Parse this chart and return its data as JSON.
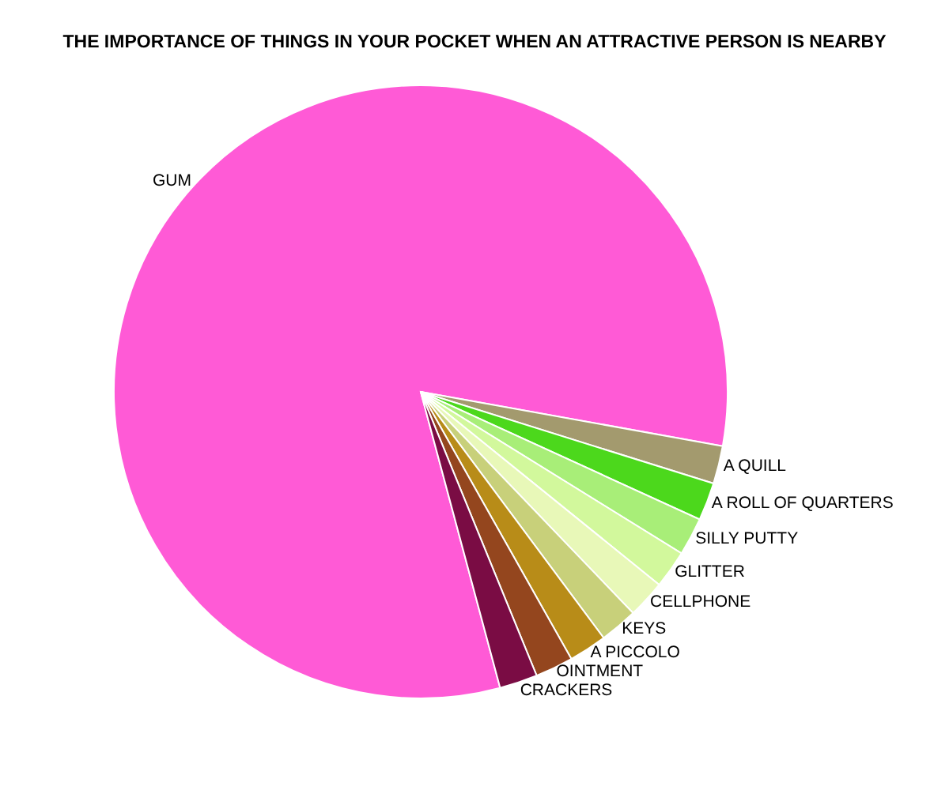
{
  "chart_data": {
    "type": "pie",
    "title": "THE IMPORTANCE OF THINGS IN YOUR POCKET WHEN AN ATTRACTIVE PERSON IS NEARBY",
    "categories": [
      "GUM",
      "A QUILL",
      "A ROLL OF QUARTERS",
      "SILLY PUTTY",
      "GLITTER",
      "CELLPHONE",
      "KEYS",
      "A PICCOLO",
      "OINTMENT",
      "CRACKERS"
    ],
    "values": [
      82,
      2,
      2,
      2,
      2,
      2,
      2,
      2,
      2,
      2
    ],
    "colors": [
      "#ff5ad6",
      "#a39a6e",
      "#4cd81c",
      "#a8ee78",
      "#d2f89c",
      "#e8f8b8",
      "#c8d07a",
      "#b88c18",
      "#94461e",
      "#7a0c44"
    ]
  }
}
